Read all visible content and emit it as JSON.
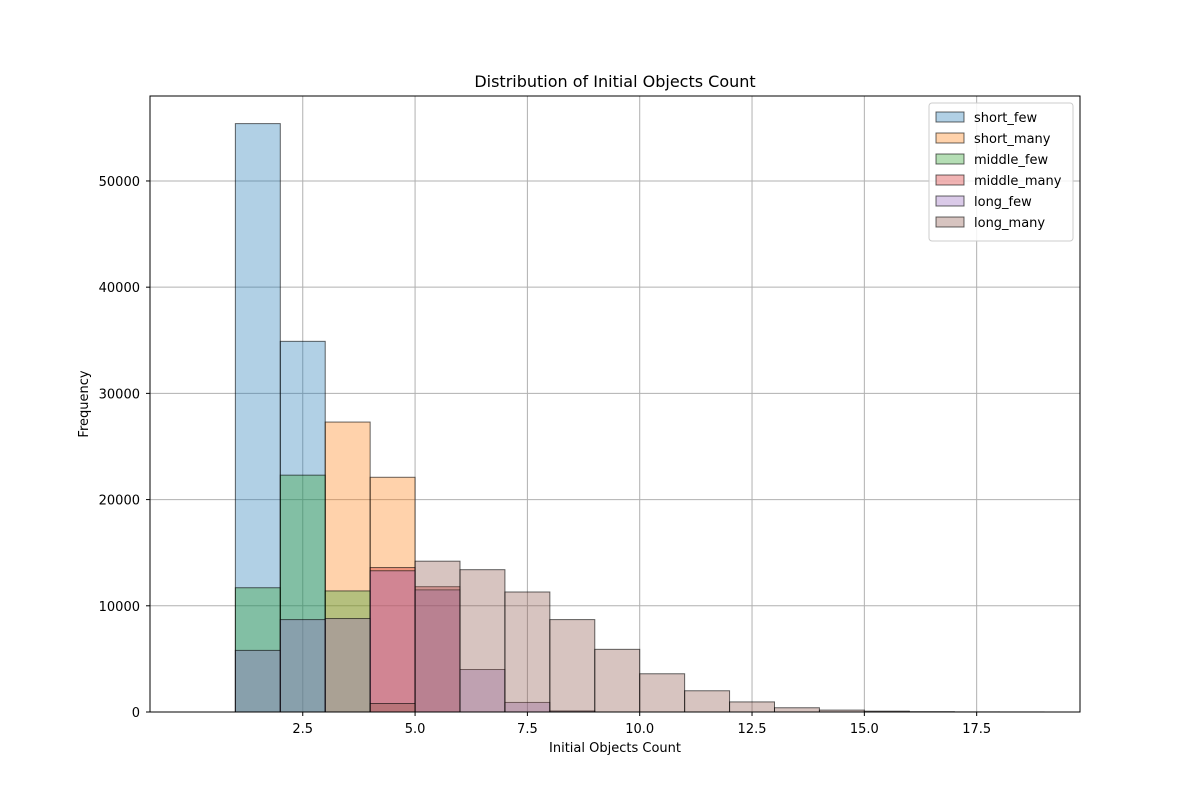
{
  "chart_data": {
    "type": "bar",
    "title": "Distribution of Initial Objects Count",
    "xlabel": "Initial Objects Count",
    "ylabel": "Frequency",
    "xlim": [
      -0.9,
      19.8
    ],
    "ylim": [
      0,
      58000
    ],
    "xticks": [
      2.5,
      5.0,
      7.5,
      10.0,
      12.5,
      15.0,
      17.5
    ],
    "xtick_labels": [
      "2.5",
      "5.0",
      "7.5",
      "10.0",
      "12.5",
      "15.0",
      "17.5"
    ],
    "yticks": [
      0,
      10000,
      20000,
      30000,
      40000,
      50000
    ],
    "ytick_labels": [
      "0",
      "10000",
      "20000",
      "30000",
      "40000",
      "50000"
    ],
    "grid": true,
    "legend_position": "top-right",
    "bin_edges": [
      1,
      2,
      3,
      4,
      5,
      6,
      7,
      8,
      9,
      10,
      11,
      12,
      13,
      14,
      15,
      16,
      17,
      18,
      19
    ],
    "series": [
      {
        "name": "short_few",
        "color": "#1f77b4",
        "values": [
          55400,
          34900,
          0,
          0,
          0,
          0,
          0,
          0,
          0,
          0,
          0,
          0,
          0,
          0,
          0,
          0,
          0,
          0
        ]
      },
      {
        "name": "short_many",
        "color": "#ff7f0e",
        "values": [
          0,
          0,
          27300,
          22100,
          0,
          0,
          0,
          0,
          0,
          0,
          0,
          0,
          0,
          0,
          0,
          0,
          0,
          0
        ]
      },
      {
        "name": "middle_few",
        "color": "#2ca02c",
        "values": [
          11700,
          22300,
          11400,
          0,
          0,
          0,
          0,
          0,
          0,
          0,
          0,
          0,
          0,
          0,
          0,
          0,
          0,
          0
        ]
      },
      {
        "name": "middle_many",
        "color": "#d62728",
        "values": [
          0,
          0,
          0,
          13600,
          11800,
          0,
          0,
          0,
          0,
          0,
          0,
          0,
          0,
          0,
          0,
          0,
          0,
          0
        ]
      },
      {
        "name": "long_few",
        "color": "#9467bd",
        "values": [
          5800,
          8700,
          8800,
          13300,
          11500,
          4000,
          900,
          100,
          0,
          0,
          0,
          0,
          0,
          0,
          0,
          0,
          0,
          0
        ]
      },
      {
        "name": "long_many",
        "color": "#8c564b",
        "values": [
          0,
          0,
          0,
          800,
          14200,
          13400,
          11300,
          8700,
          5900,
          3600,
          2000,
          950,
          400,
          180,
          80,
          30,
          10,
          5
        ]
      }
    ]
  }
}
